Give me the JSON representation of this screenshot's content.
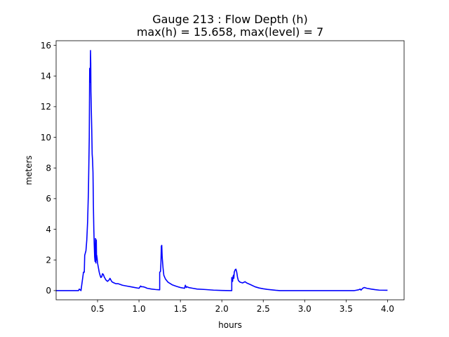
{
  "chart_data": {
    "type": "line",
    "title_line1": "Gauge 213 : Flow Depth (h)",
    "title_line2": "max(h) =  15.658,    max(level) = 7",
    "xlabel": "hours",
    "ylabel": "meters",
    "xlim": [
      0.0,
      4.2
    ],
    "ylim": [
      -0.6,
      16.3
    ],
    "xticks": [
      0.5,
      1.0,
      1.5,
      2.0,
      2.5,
      3.0,
      3.5,
      4.0
    ],
    "xtick_labels": [
      "0.5",
      "1.0",
      "1.5",
      "2.0",
      "2.5",
      "3.0",
      "3.5",
      "4.0"
    ],
    "yticks": [
      0,
      2,
      4,
      6,
      8,
      10,
      12,
      14,
      16
    ],
    "ytick_labels": [
      "0",
      "2",
      "4",
      "6",
      "8",
      "10",
      "12",
      "14",
      "16"
    ],
    "grid": false,
    "series": [
      {
        "color": "#0000ff",
        "x": [
          0.0,
          0.26,
          0.27,
          0.28,
          0.3,
          0.32,
          0.33,
          0.34,
          0.345,
          0.36,
          0.37,
          0.38,
          0.39,
          0.4,
          0.405,
          0.41,
          0.412,
          0.415,
          0.418,
          0.42,
          0.425,
          0.43,
          0.435,
          0.44,
          0.445,
          0.45,
          0.455,
          0.46,
          0.465,
          0.47,
          0.472,
          0.475,
          0.478,
          0.48,
          0.482,
          0.485,
          0.488,
          0.49,
          0.495,
          0.5,
          0.51,
          0.52,
          0.53,
          0.54,
          0.55,
          0.56,
          0.57,
          0.58,
          0.6,
          0.62,
          0.64,
          0.65,
          0.66,
          0.67,
          0.68,
          0.7,
          0.72,
          0.75,
          0.8,
          0.85,
          0.9,
          0.95,
          1.0,
          1.02,
          1.03,
          1.05,
          1.07,
          1.1,
          1.15,
          1.2,
          1.25,
          1.25,
          1.26,
          1.265,
          1.27,
          1.275,
          1.28,
          1.29,
          1.3,
          1.32,
          1.35,
          1.4,
          1.45,
          1.5,
          1.55,
          1.56,
          1.57,
          1.58,
          1.6,
          1.65,
          1.7,
          1.8,
          1.9,
          2.0,
          2.1,
          2.12,
          2.12,
          2.13,
          2.135,
          2.14,
          2.145,
          2.15,
          2.16,
          2.17,
          2.18,
          2.19,
          2.2,
          2.22,
          2.25,
          2.27,
          2.28,
          2.3,
          2.35,
          2.4,
          2.45,
          2.5,
          2.55,
          2.6,
          2.65,
          2.7,
          2.8,
          3.0,
          3.2,
          3.4,
          3.6,
          3.65,
          3.67,
          3.68,
          3.7,
          3.72,
          3.75,
          3.8,
          3.85,
          3.9,
          4.0
        ],
        "y": [
          0.0,
          0.0,
          0.0,
          0.1,
          0.0,
          0.8,
          1.2,
          1.2,
          2.3,
          2.6,
          3.3,
          4.5,
          6.5,
          10.0,
          14.5,
          13.6,
          14.0,
          15.66,
          14.8,
          13.0,
          11.7,
          10.5,
          8.9,
          8.5,
          7.7,
          5.5,
          4.0,
          3.0,
          2.2,
          1.9,
          2.7,
          3.4,
          2.2,
          1.8,
          2.5,
          3.3,
          2.0,
          2.3,
          2.1,
          1.8,
          1.5,
          1.2,
          1.0,
          0.85,
          0.9,
          1.1,
          1.05,
          0.9,
          0.7,
          0.6,
          0.7,
          0.8,
          0.7,
          0.6,
          0.55,
          0.5,
          0.45,
          0.45,
          0.35,
          0.3,
          0.25,
          0.2,
          0.15,
          0.3,
          0.25,
          0.25,
          0.22,
          0.15,
          0.1,
          0.07,
          0.05,
          1.2,
          1.25,
          1.8,
          2.9,
          2.95,
          2.2,
          1.5,
          1.0,
          0.75,
          0.55,
          0.38,
          0.28,
          0.2,
          0.15,
          0.35,
          0.2,
          0.25,
          0.2,
          0.15,
          0.1,
          0.07,
          0.03,
          0.01,
          0.0,
          0.0,
          0.85,
          0.6,
          0.9,
          1.0,
          0.8,
          1.2,
          1.35,
          1.4,
          1.2,
          0.85,
          0.65,
          0.55,
          0.5,
          0.55,
          0.58,
          0.5,
          0.38,
          0.25,
          0.17,
          0.12,
          0.08,
          0.05,
          0.02,
          0.0,
          0.0,
          0.0,
          0.0,
          0.0,
          0.0,
          0.05,
          0.1,
          0.03,
          0.15,
          0.2,
          0.15,
          0.1,
          0.06,
          0.03,
          0.02
        ]
      }
    ]
  }
}
